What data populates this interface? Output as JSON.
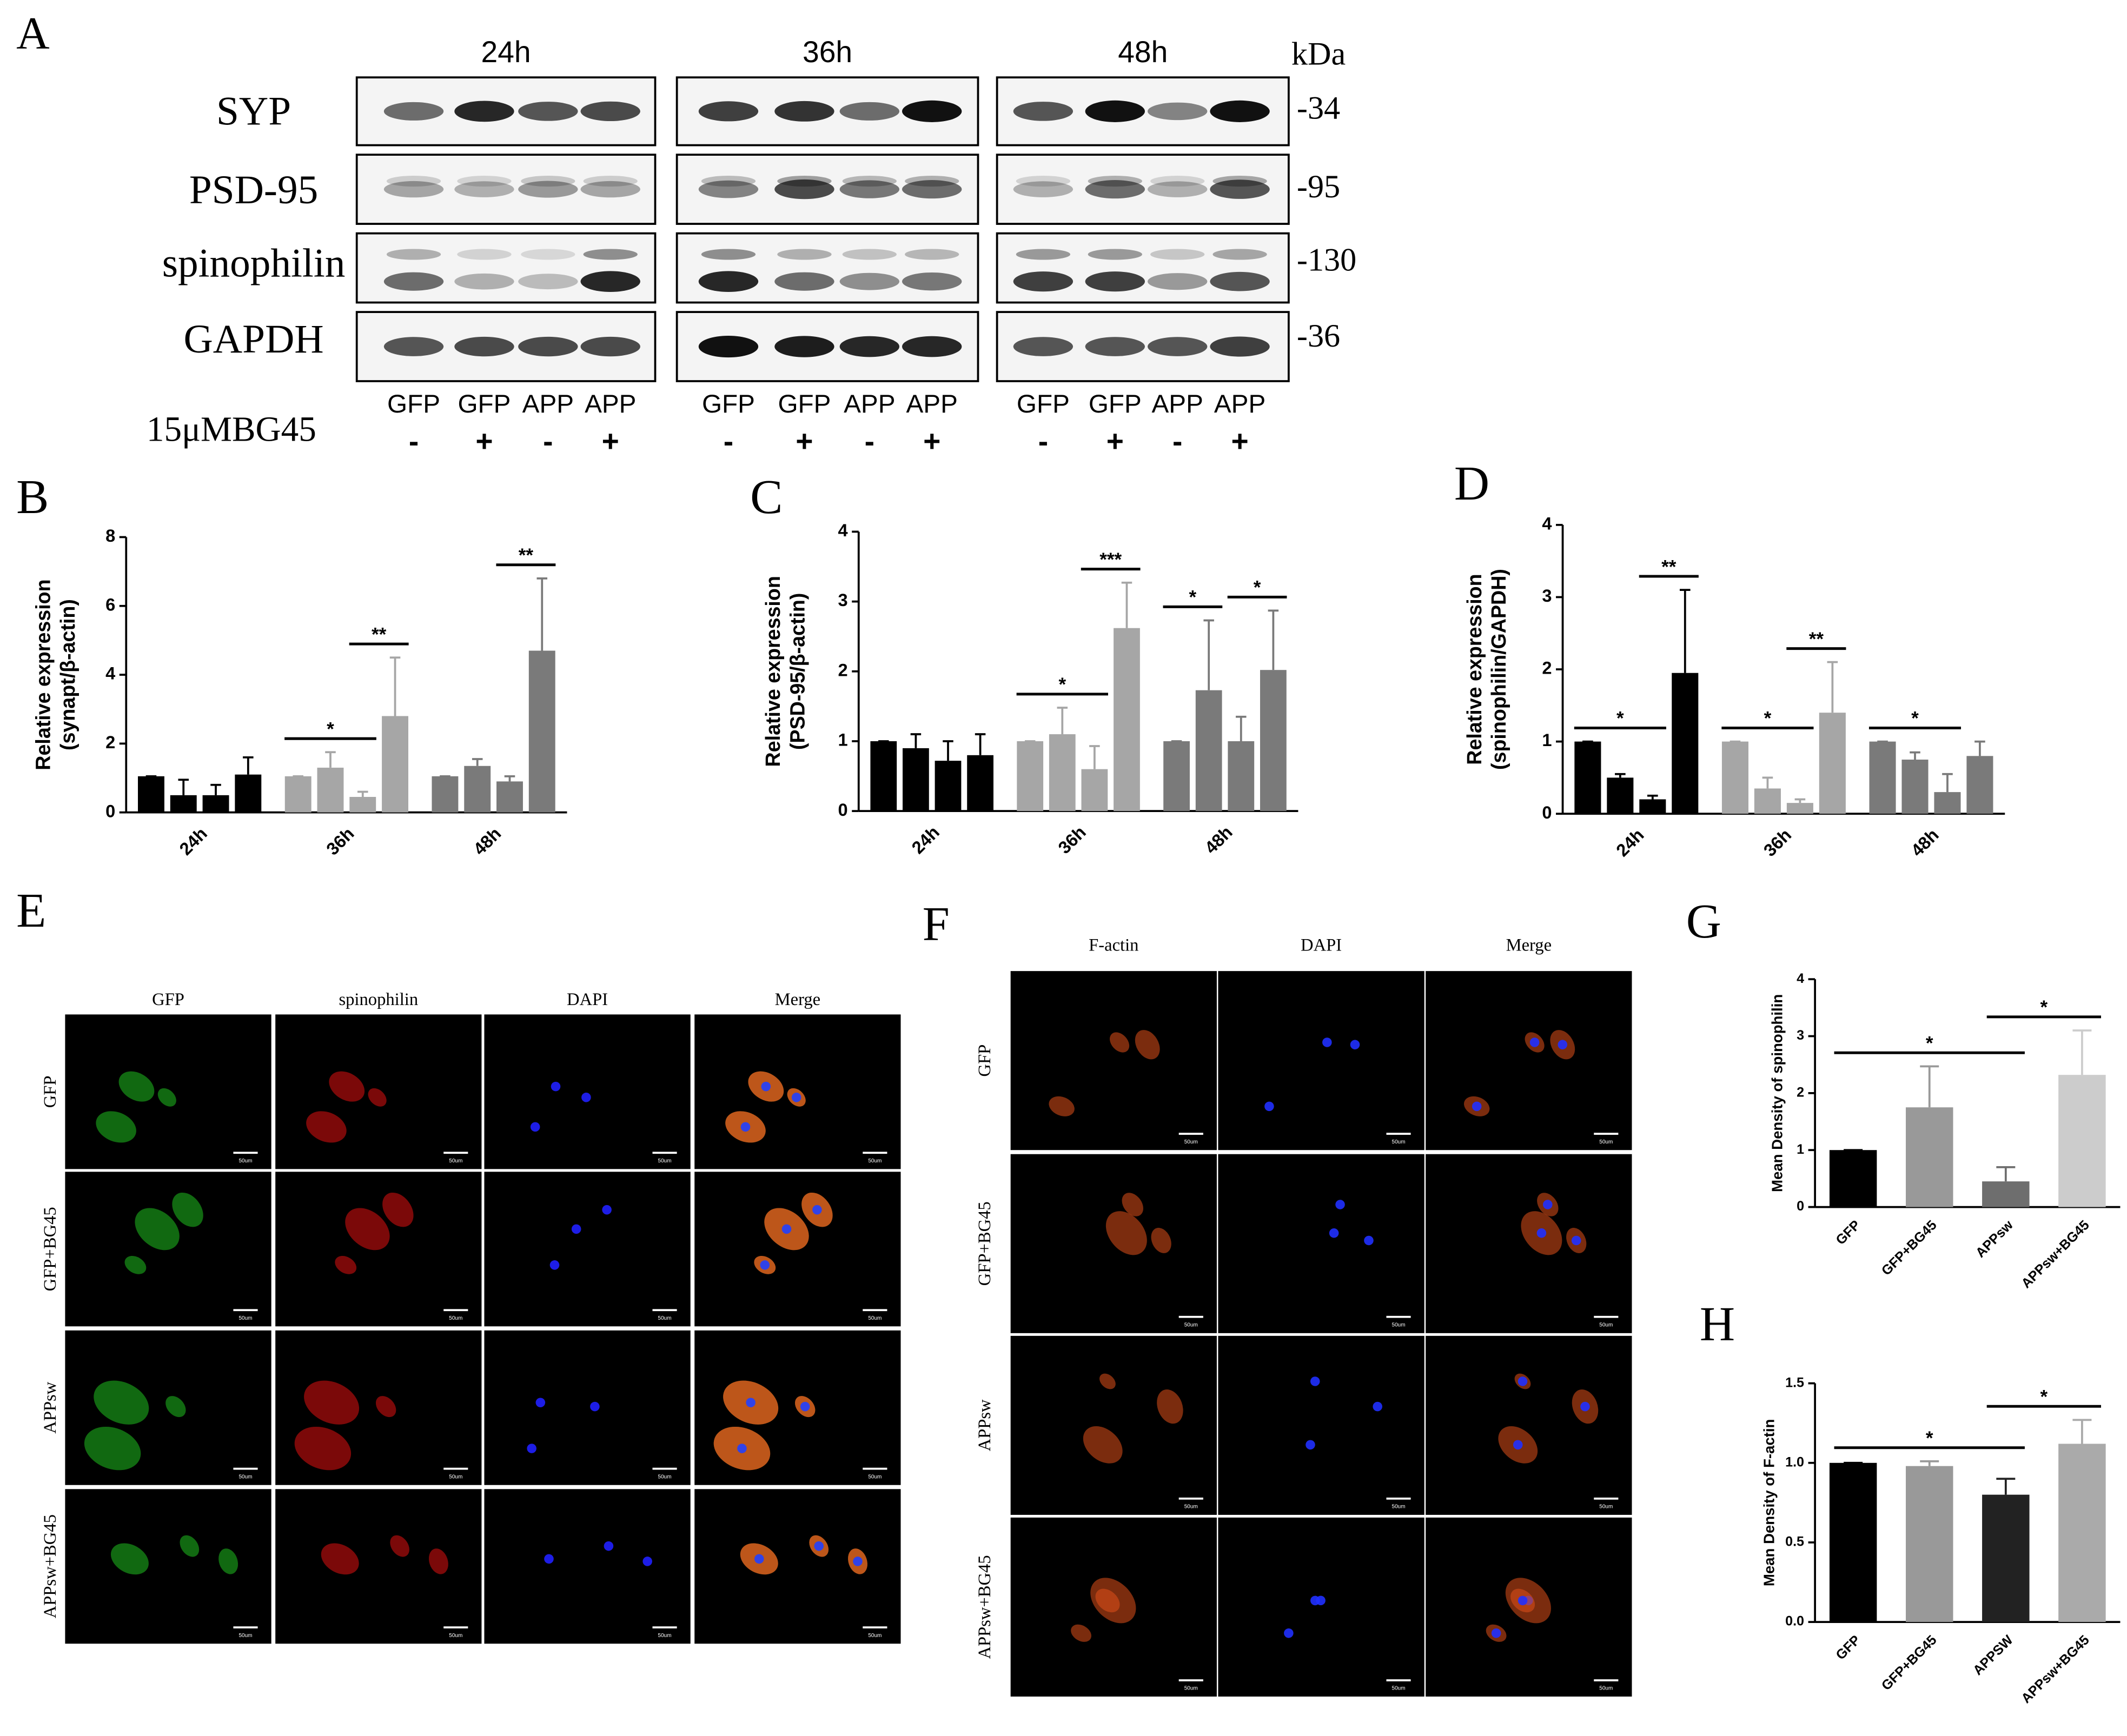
{
  "western_blot": {
    "panel": "A",
    "times": [
      "24h",
      "36h",
      "48h"
    ],
    "unit": "kDa",
    "proteins": [
      {
        "name": "SYP",
        "kda": "-34"
      },
      {
        "name": "PSD-95",
        "kda": "-95"
      },
      {
        "name": "spinophilin",
        "kda": "-130"
      },
      {
        "name": "GAPDH",
        "kda": "-36"
      }
    ],
    "lanes": [
      [
        "GFP",
        "GFP",
        "APP",
        "APP"
      ],
      [
        "GFP",
        "GFP",
        "APP",
        "APP"
      ],
      [
        "GFP",
        "GFP",
        "APP",
        "APP"
      ]
    ],
    "treatment_label": "15μMBG45",
    "treatment": [
      [
        "-",
        "+",
        "-",
        "+"
      ],
      [
        "-",
        "+",
        "-",
        "+"
      ],
      [
        "-",
        "+",
        "-",
        "+"
      ]
    ]
  },
  "chart_data": [
    {
      "type": "bar",
      "panel": "B",
      "ylabel": [
        "Relative expression",
        "(synapt/β-actin)"
      ],
      "categories": [
        "24h",
        "36h",
        "48h"
      ],
      "colors": [
        "#000000",
        "#a6a6a6",
        "#7a7a7a"
      ],
      "values": [
        [
          1.05,
          0.5,
          0.5,
          1.1
        ],
        [
          1.05,
          1.3,
          0.45,
          2.8
        ],
        [
          1.05,
          1.35,
          0.9,
          4.7
        ]
      ],
      "errors": [
        [
          0,
          0.45,
          0.3,
          0.5
        ],
        [
          0,
          0.45,
          0.15,
          1.7
        ],
        [
          0,
          0.2,
          0.15,
          2.1
        ]
      ],
      "ylim": [
        0,
        8
      ],
      "yticks": [
        0,
        2,
        4,
        6,
        8
      ],
      "annotations": [
        {
          "text": "*",
          "group": 1,
          "bars": [
            0,
            2
          ]
        },
        {
          "text": "**",
          "group": 1,
          "bars": [
            2,
            3
          ]
        },
        {
          "text": "**",
          "group": 2,
          "bars": [
            2,
            3
          ]
        }
      ]
    },
    {
      "type": "bar",
      "panel": "C",
      "ylabel": [
        "Relative expression",
        "(PSD-95/β-actin)"
      ],
      "categories": [
        "24h",
        "36h",
        "48h"
      ],
      "colors": [
        "#000000",
        "#a6a6a6",
        "#7a7a7a"
      ],
      "values": [
        [
          1.0,
          0.9,
          0.72,
          0.8
        ],
        [
          1.0,
          1.1,
          0.6,
          2.62
        ],
        [
          1.0,
          1.73,
          1.0,
          2.02
        ]
      ],
      "errors": [
        [
          0,
          0.2,
          0.28,
          0.3
        ],
        [
          0,
          0.38,
          0.33,
          0.65
        ],
        [
          0,
          1.0,
          0.35,
          0.85
        ]
      ],
      "ylim": [
        0,
        4
      ],
      "yticks": [
        0,
        1,
        2,
        3,
        4
      ],
      "annotations": [
        {
          "text": "*",
          "group": 1,
          "bars": [
            0,
            2
          ]
        },
        {
          "text": "***",
          "group": 1,
          "bars": [
            2,
            3
          ]
        },
        {
          "text": "*",
          "group": 2,
          "bars": [
            0,
            1
          ]
        },
        {
          "text": "*",
          "group": 2,
          "bars": [
            2,
            3
          ]
        }
      ]
    },
    {
      "type": "bar",
      "panel": "D",
      "ylabel": [
        "Relative expression",
        "(spinophilin/GAPDH)"
      ],
      "categories": [
        "24h",
        "36h",
        "48h"
      ],
      "colors": [
        "#000000",
        "#a6a6a6",
        "#7a7a7a"
      ],
      "values": [
        [
          1.0,
          0.5,
          0.2,
          1.95
        ],
        [
          1.0,
          0.35,
          0.15,
          1.4
        ],
        [
          1.0,
          0.75,
          0.3,
          0.8
        ]
      ],
      "errors": [
        [
          0,
          0.05,
          0.05,
          1.15
        ],
        [
          0,
          0.15,
          0.05,
          0.7
        ],
        [
          0,
          0.1,
          0.25,
          0.2
        ]
      ],
      "ylim": [
        0,
        4
      ],
      "yticks": [
        0,
        1,
        2,
        3,
        4
      ],
      "annotations": [
        {
          "text": "*",
          "group": 0,
          "bars": [
            0,
            2
          ]
        },
        {
          "text": "**",
          "group": 0,
          "bars": [
            2,
            3
          ]
        },
        {
          "text": "*",
          "group": 1,
          "bars": [
            0,
            2
          ]
        },
        {
          "text": "**",
          "group": 1,
          "bars": [
            2,
            3
          ]
        },
        {
          "text": "*",
          "group": 2,
          "bars": [
            0,
            2
          ]
        }
      ]
    },
    {
      "type": "bar",
      "panel": "G",
      "ylabel": [
        "Mean Density of spinophilin"
      ],
      "categories": [
        "GFP",
        "GFP+BG45",
        "APPsw",
        "APPsw+BG45"
      ],
      "colors": [
        "#000000",
        "#999999",
        "#6e6e6e",
        "#cccccc"
      ],
      "values": [
        1.0,
        1.75,
        0.45,
        2.32
      ],
      "errors": [
        0,
        0.72,
        0.25,
        0.78
      ],
      "ylim": [
        0,
        4
      ],
      "yticks": [
        0,
        1,
        2,
        3,
        4
      ],
      "annotations": [
        {
          "text": "*",
          "bars": [
            0,
            2
          ]
        },
        {
          "text": "*",
          "bars": [
            2,
            3
          ]
        }
      ]
    },
    {
      "type": "bar",
      "panel": "H",
      "ylabel": [
        "Mean Density of F-actin"
      ],
      "categories": [
        "GFP",
        "GFP+BG45",
        "APPSW",
        "APPsw+BG45"
      ],
      "colors": [
        "#000000",
        "#999999",
        "#222222",
        "#aaaaaa"
      ],
      "values": [
        1.0,
        0.98,
        0.8,
        1.12
      ],
      "errors": [
        0,
        0.03,
        0.1,
        0.15
      ],
      "ylim": [
        0,
        1.5
      ],
      "yticks": [
        {
          "value": 0,
          "label": "0.0"
        },
        0.5,
        {
          "value": 1,
          "label": "1.0"
        },
        1.5
      ],
      "annotations": [
        {
          "text": "*",
          "bars": [
            0,
            2
          ]
        },
        {
          "text": "*",
          "bars": [
            2,
            3
          ]
        }
      ]
    }
  ],
  "microscopy": [
    {
      "panel": "E",
      "columns": [
        "GFP",
        "spinophilin",
        "DAPI",
        "Merge"
      ],
      "rows": [
        "GFP",
        "GFP+BG45",
        "APPsw",
        "APPsw+BG45"
      ],
      "scale_bar": "50um"
    },
    {
      "panel": "F",
      "columns": [
        "F-actin",
        "DAPI",
        "Merge"
      ],
      "rows": [
        "GFP",
        "GFP+BG45",
        "APPsw",
        "APPsw+BG45"
      ],
      "scale_bar": "50um"
    }
  ]
}
